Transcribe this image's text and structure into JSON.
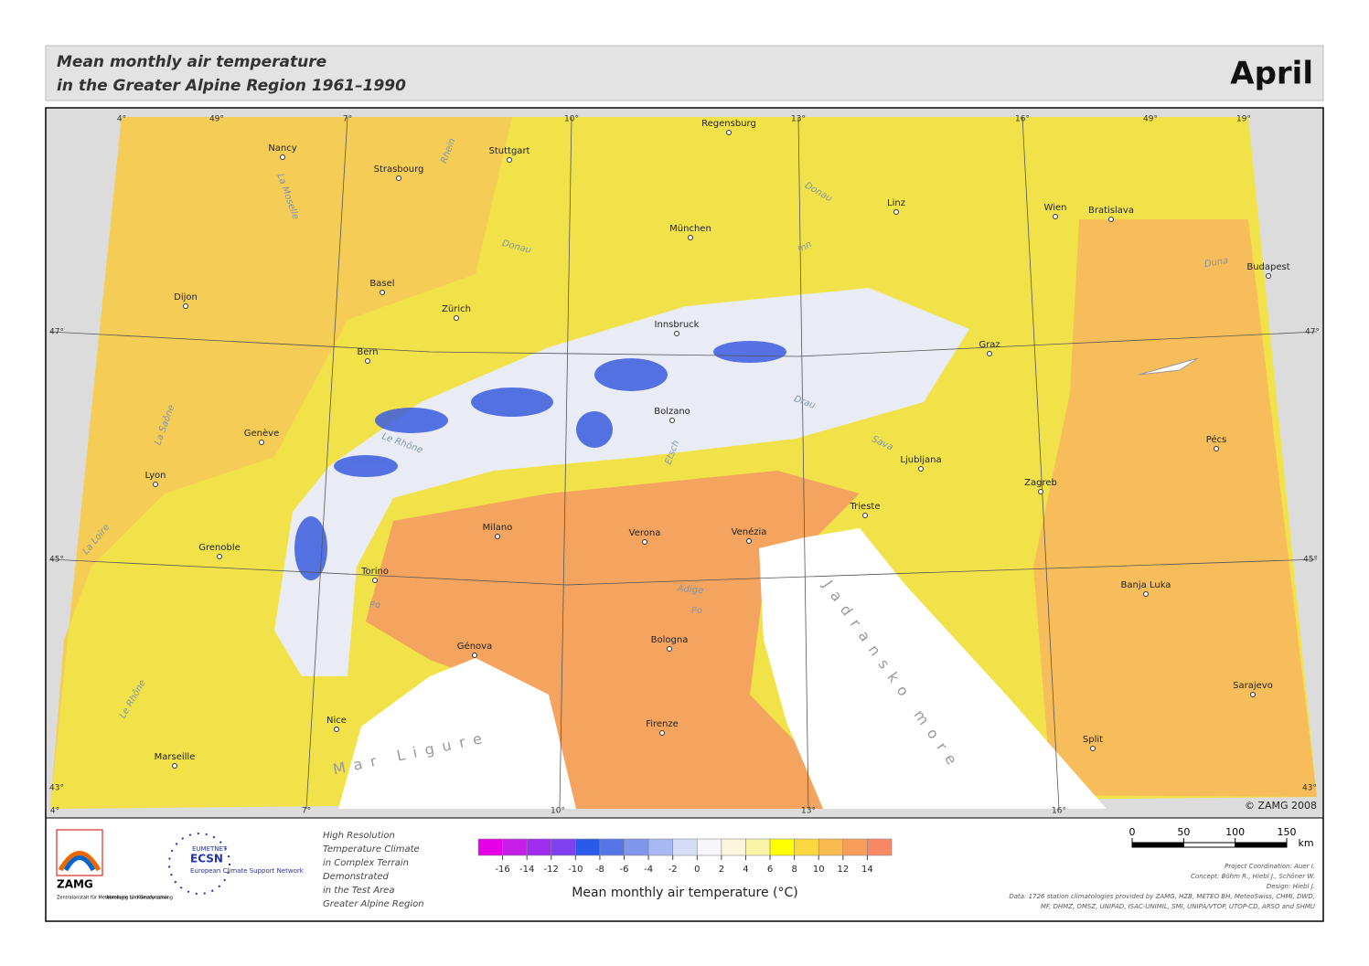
{
  "header": {
    "title_lines": [
      "Mean monthly air temperature",
      "in the Greater Alpine Region 1961–1990"
    ],
    "month": "April"
  },
  "map": {
    "lon_labels": [
      "4°",
      "7°",
      "10°",
      "13°",
      "16°",
      "19°"
    ],
    "lat_labels": [
      "49°",
      "47°",
      "45°",
      "43°"
    ],
    "cities": [
      "Regensburg",
      "Nancy",
      "Stuttgart",
      "Strasbourg",
      "Linz",
      "Wien",
      "Bratislava",
      "München",
      "Budapest",
      "Basel",
      "Dijon",
      "Zürich",
      "Innsbruck",
      "Graz",
      "Bern",
      "Bolzano",
      "Genève",
      "Pécs",
      "Ljubljana",
      "Lyon",
      "Zagreb",
      "Trieste",
      "Milano",
      "Verona",
      "Venézia",
      "Grenoble",
      "Torino",
      "Banja Luka",
      "Bologna",
      "Génova",
      "Sarajevo",
      "Nice",
      "Firenze",
      "Split",
      "Marseille"
    ],
    "rivers": [
      "Rhein",
      "Donau",
      "Donau",
      "Inn",
      "La Moselle",
      "La Saône",
      "Le Rhône",
      "Le Rhône",
      "La Loire",
      "Etsch",
      "Adige",
      "Po",
      "Po",
      "Drau",
      "Sava",
      "Duna"
    ],
    "seas": [
      "Mar Ligure",
      "Jadransko more"
    ],
    "copyright": "© ZAMG 2008"
  },
  "footer": {
    "zamg": {
      "name": "ZAMG",
      "subtitle": "Zentralanstalt für Meteorologie und Geodynamik",
      "department": "Abteilung für Klimaforschung"
    },
    "ecsn": {
      "top": "EUMETNET",
      "name": "ECSN",
      "full": "European Climate Support Network"
    },
    "project_lines": [
      "High Resolution",
      "Temperature Climate",
      "in Complex Terrain",
      "Demonstrated",
      "in the Test Area",
      "Greater Alpine Region"
    ],
    "legend": {
      "title": "Mean monthly air temperature (°C)",
      "ticks": [
        -16,
        -14,
        -12,
        -10,
        -8,
        -6,
        -4,
        -2,
        0,
        2,
        4,
        6,
        8,
        10,
        12,
        14
      ],
      "colors": [
        "#e600e6",
        "#c41ee8",
        "#a02cf0",
        "#7f40f0",
        "#2c5ae8",
        "#5676e8",
        "#7f96ec",
        "#a8b8f2",
        "#d4dcf6",
        "#f7f7fb",
        "#fdf6dc",
        "#fbf3a8",
        "#ffff00",
        "#fbd840",
        "#f9bb50",
        "#f89e5c",
        "#f78866"
      ]
    },
    "scale_bar": {
      "ticks": [
        0,
        50,
        100,
        150
      ],
      "unit": "km"
    },
    "credits": [
      "Project Coordination: Auer I.",
      "Concept: Böhm R., Hiebl J., Schöner W.",
      "Design: Hiebl J.",
      "Data: 1726 station climatologies provided by ZAMG, HZB, METEO BH, MeteoSwiss, CHMI, DWD,",
      "MF, DHMZ, OMSZ, UNIPAD, ISAC-UNIMIL, SMI, UNIPA/VTOP, UTOP-CD, ARSO and SHMU"
    ]
  }
}
